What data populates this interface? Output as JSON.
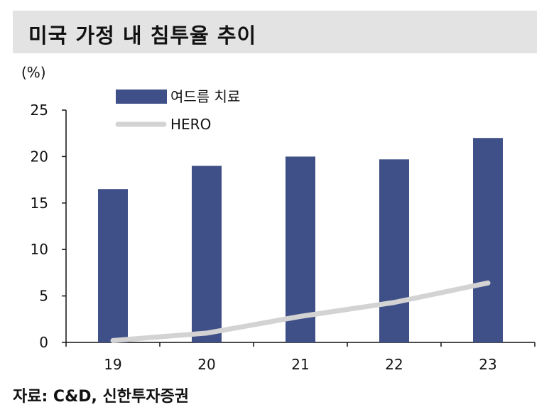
{
  "header": {
    "title": "미국 가정 내 침투율 추이"
  },
  "source": "자료: C&D, 신한투자증권",
  "colors": {
    "bar": "#3f4f87",
    "line": "#d3d3d3",
    "axis": "#111111",
    "title_bg": "#e3e3e3"
  },
  "chart_data": {
    "type": "bar",
    "ylabel": "(%)",
    "ylim": [
      0,
      25
    ],
    "yticks": [
      0,
      5,
      10,
      15,
      20,
      25
    ],
    "categories": [
      "19",
      "20",
      "21",
      "22",
      "23"
    ],
    "grid": false,
    "legend_position": "top-left",
    "series": [
      {
        "name": "여드름 치료",
        "type": "bar",
        "values": [
          16.5,
          19.0,
          20.0,
          19.7,
          22.0
        ]
      },
      {
        "name": "HERO",
        "type": "line",
        "values": [
          0.2,
          1.0,
          2.8,
          4.3,
          6.4
        ]
      }
    ]
  }
}
